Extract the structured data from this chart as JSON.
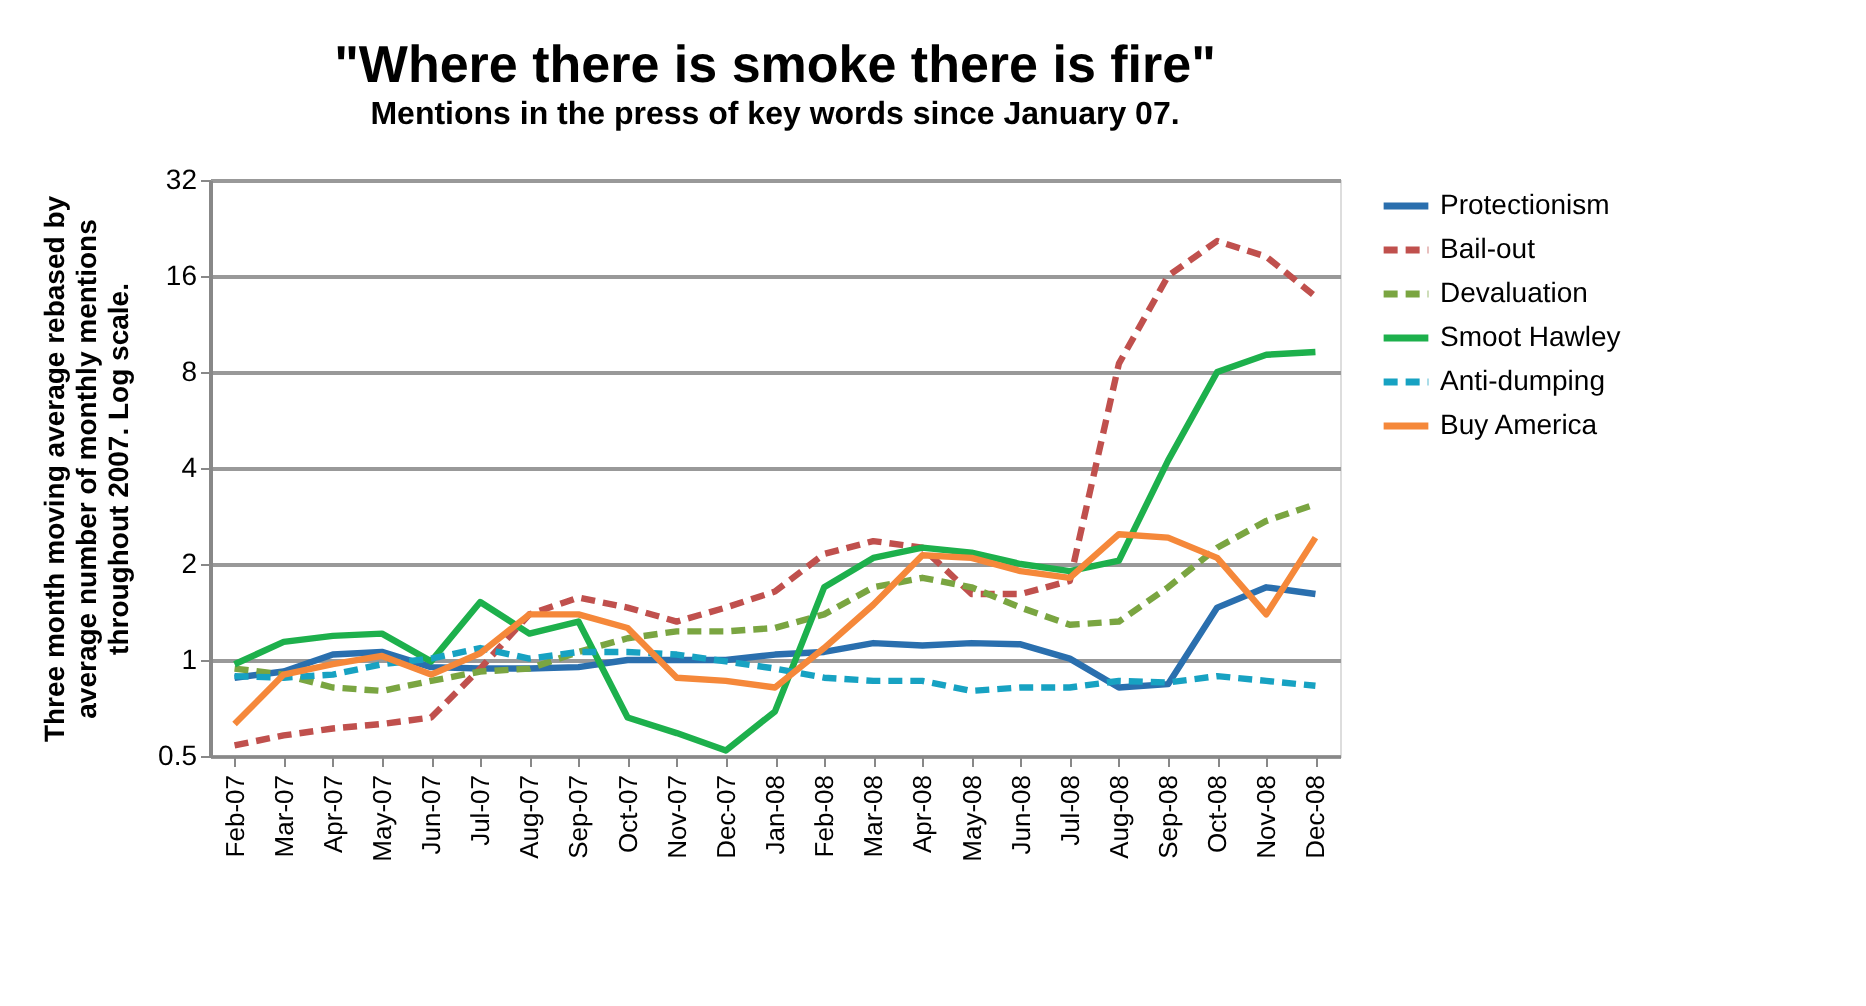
{
  "chart_data": {
    "type": "line",
    "title": "\"Where there is smoke there is fire\"",
    "subtitle": "Mentions in the press of key words since January 07.",
    "ylabel": "Three month moving average rebased by average number of monthly mentions throughout 2007. Log scale.",
    "categories": [
      "Feb-07",
      "Mar-07",
      "Apr-07",
      "May-07",
      "Jun-07",
      "Jul-07",
      "Aug-07",
      "Sep-07",
      "Oct-07",
      "Nov-07",
      "Dec-07",
      "Jan-08",
      "Feb-08",
      "Mar-08",
      "Apr-08",
      "May-08",
      "Jun-08",
      "Jul-08",
      "Aug-08",
      "Sep-08",
      "Oct-08",
      "Nov-08",
      "Dec-08"
    ],
    "series": [
      {
        "name": "Protectionism",
        "color": "#2a6fae",
        "line_style": "solid",
        "values": [
          0.88,
          0.92,
          1.04,
          1.06,
          0.95,
          0.94,
          0.94,
          0.95,
          1.0,
          1.0,
          1.0,
          1.04,
          1.06,
          1.13,
          1.11,
          1.13,
          1.12,
          1.01,
          0.82,
          0.84,
          1.46,
          1.69,
          1.61
        ]
      },
      {
        "name": "Bail-out",
        "color": "#c0504d",
        "line_style": "dashed",
        "values": [
          0.54,
          0.58,
          0.61,
          0.63,
          0.66,
          0.94,
          1.39,
          1.57,
          1.46,
          1.32,
          1.46,
          1.64,
          2.15,
          2.36,
          2.25,
          1.61,
          1.61,
          1.77,
          8.5,
          16,
          20.6,
          18.4,
          13.8
        ]
      },
      {
        "name": "Devaluation",
        "color": "#7aa541",
        "line_style": "dashed",
        "values": [
          0.94,
          0.9,
          0.82,
          0.8,
          0.86,
          0.92,
          0.94,
          1.06,
          1.17,
          1.23,
          1.23,
          1.26,
          1.39,
          1.69,
          1.81,
          1.69,
          1.46,
          1.29,
          1.32,
          1.69,
          2.25,
          2.73,
          3.08
        ]
      },
      {
        "name": "Smoot Hawley",
        "color": "#1db04c",
        "line_style": "solid",
        "values": [
          0.97,
          1.14,
          1.19,
          1.21,
          0.99,
          1.52,
          1.21,
          1.32,
          0.66,
          0.59,
          0.52,
          0.69,
          1.69,
          2.09,
          2.25,
          2.17,
          2.0,
          1.9,
          2.05,
          4.22,
          8.0,
          9.06,
          9.24
        ]
      },
      {
        "name": "Anti-dumping",
        "color": "#17a2c2",
        "line_style": "dashed",
        "values": [
          0.89,
          0.88,
          0.9,
          0.97,
          1.01,
          1.09,
          1.01,
          1.06,
          1.06,
          1.04,
          0.99,
          0.94,
          0.88,
          0.86,
          0.86,
          0.8,
          0.82,
          0.82,
          0.86,
          0.85,
          0.89,
          0.86,
          0.83
        ]
      },
      {
        "name": "Buy America",
        "color": "#f5883a",
        "line_style": "solid",
        "values": [
          0.63,
          0.9,
          0.97,
          1.03,
          0.9,
          1.05,
          1.39,
          1.39,
          1.26,
          0.88,
          0.86,
          0.82,
          1.09,
          1.49,
          2.13,
          2.09,
          1.9,
          1.81,
          2.48,
          2.42,
          2.09,
          1.39,
          2.42
        ]
      }
    ],
    "log": true,
    "ylim": [
      0.5,
      32
    ],
    "yticks": [
      0.5,
      1,
      2,
      4,
      8,
      16,
      32
    ],
    "grid": "y",
    "legend": "right",
    "marker": "none"
  }
}
